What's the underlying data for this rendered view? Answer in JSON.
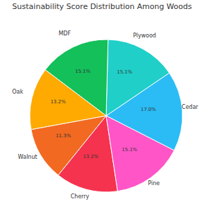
{
  "chart_data": {
    "type": "pie",
    "title": "Sustainability Score Distribution Among Woods",
    "categories": [
      "Cedar",
      "Plywood",
      "MDF",
      "Oak",
      "Walnut",
      "Cherry",
      "Pine"
    ],
    "values": [
      17.0,
      15.1,
      15.1,
      13.2,
      11.3,
      13.2,
      15.1
    ],
    "value_labels": [
      "17.0%",
      "15.1%",
      "15.1%",
      "13.2%",
      "11.3%",
      "13.2%",
      "15.1%"
    ],
    "colors": [
      "#2bbcf5",
      "#1fcfc8",
      "#13c05a",
      "#ffaa00",
      "#f26a21",
      "#f5334f",
      "#ff55c7"
    ],
    "data_labels": true
  }
}
